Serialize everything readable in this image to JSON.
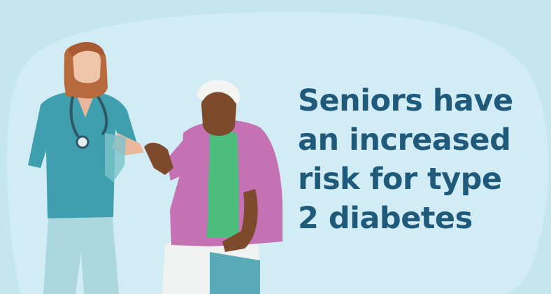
{
  "headline": {
    "lines": [
      "Seniors have",
      "an increased",
      "risk for type",
      "2 diabetes"
    ]
  },
  "illustration": {
    "subject": "nurse-with-stethoscope-and-senior-patient",
    "colors": {
      "background": "#c5e6ef",
      "blob": "#d4eef5",
      "scrubs": "#3f9fae",
      "cardigan": "#c572b4",
      "shirt": "#4dbd7e",
      "headline": "#1f5a7a"
    }
  }
}
